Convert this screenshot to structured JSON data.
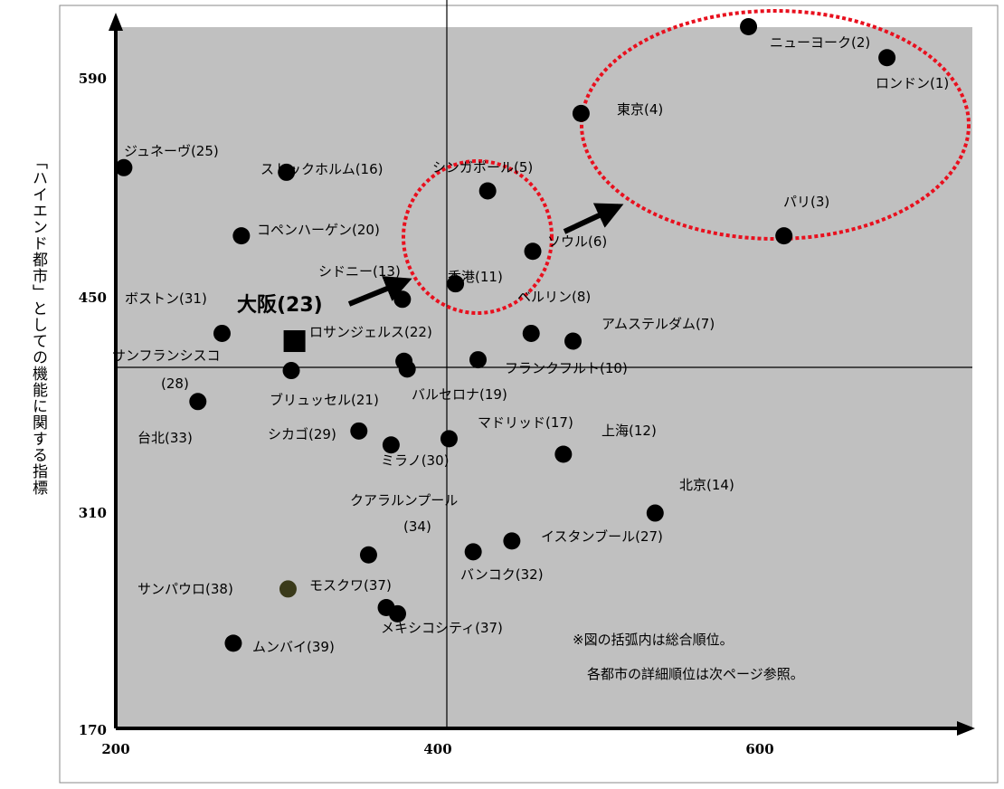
{
  "chart_data": {
    "type": "scatter",
    "ylabel": "「ハイエンド都市」としての機能に関する指標",
    "xlabel": "",
    "xlim": [
      200,
      735
    ],
    "ylim": [
      170,
      640
    ],
    "x_ticks": [
      "200",
      "400",
      "600"
    ],
    "y_ticks": [
      "170",
      "310",
      "450",
      "590"
    ],
    "reference_lines": {
      "x": 405,
      "y": 406
    },
    "points": [
      {
        "label": "ニューヨーク(2)",
        "x": 593,
        "y": 623
      },
      {
        "label": "ロンドン(1)",
        "x": 679,
        "y": 603
      },
      {
        "label": "東京(4)",
        "x": 489,
        "y": 567
      },
      {
        "label": "パリ(3)",
        "x": 615,
        "y": 488
      },
      {
        "label": "ジュネーヴ(25)",
        "x": 205,
        "y": 532
      },
      {
        "label": "ストックホルム(16)",
        "x": 306,
        "y": 529
      },
      {
        "label": "シンガポール(5)",
        "x": 431,
        "y": 517
      },
      {
        "label": "コペンハーゲン(20)",
        "x": 278,
        "y": 488
      },
      {
        "label": "ソウル(6)",
        "x": 459,
        "y": 478
      },
      {
        "label": "シドニー(13)",
        "x": 378,
        "y": 447
      },
      {
        "label": "香港(11)",
        "x": 411,
        "y": 457
      },
      {
        "label": "ボストン(31)",
        "x": 266,
        "y": 425
      },
      {
        "label": "ベルリン(8)",
        "x": 458,
        "y": 425
      },
      {
        "label": "アムステルダム(7)",
        "x": 484,
        "y": 420
      },
      {
        "label": "大阪(23)",
        "x": 311,
        "y": 420,
        "marker": "square"
      },
      {
        "label": "ロサンジェルス(22)",
        "x": 379,
        "y": 407
      },
      {
        "label": "フランクフルト(10)",
        "x": 425,
        "y": 408
      },
      {
        "label": "ブリュッセル(21)",
        "x": 309,
        "y": 401
      },
      {
        "label": "バルセロナ(19)",
        "x": 381,
        "y": 402
      },
      {
        "label": "サンフランシスコ(28)",
        "x": 251,
        "y": 381
      },
      {
        "label": "シカゴ(29)",
        "x": 351,
        "y": 362
      },
      {
        "label": "マドリッド(17)",
        "x": 407,
        "y": 357
      },
      {
        "label": "上海(12)",
        "x": 478,
        "y": 347
      },
      {
        "label": "ミラノ(30)",
        "x": 371,
        "y": 353
      },
      {
        "label": "北京(14)",
        "x": 535,
        "y": 309
      },
      {
        "label": "イスタンブール(27)",
        "x": 446,
        "y": 291
      },
      {
        "label": "バンコク(32)",
        "x": 422,
        "y": 284
      },
      {
        "label": "クアラルンプール(34)",
        "x": 357,
        "y": 282
      },
      {
        "label": "サンパウロ(38)",
        "x": 307,
        "y": 260,
        "color": "#3a3a1a"
      },
      {
        "label": "モスクワ(37)",
        "x": 368,
        "y": 248
      },
      {
        "label": "メキシコシティ(37)",
        "x": 375,
        "y": 244
      },
      {
        "label": "ムンバイ(39)",
        "x": 273,
        "y": 225
      }
    ],
    "osaka_label": "大阪(23)",
    "notes": [
      "※図の括弧内は総合順位。",
      "各都市の詳細順位は次ページ参照。"
    ],
    "colors": {
      "plot_bg": "#c0c0c0",
      "point": "#000000",
      "highlight_ellipse": "#e8101e"
    }
  },
  "labels": {
    "jp_0": "ジュネーヴ(25)",
    "jp_1": "ストックホルム(16)",
    "jp_2": "シンガポール(5)",
    "jp_3": "ニューヨーク(2)",
    "jp_4": "ロンドン(1)",
    "jp_5": "東京(4)",
    "jp_6": "パリ(3)",
    "jp_7": "コペンハーゲン(20)",
    "jp_8": "ソウル(6)",
    "jp_9": "シドニー(13)",
    "jp_10": "香港(11)",
    "jp_11": "ボストン(31)",
    "jp_12": "ベルリン(8)",
    "jp_13": "アムステルダム(7)",
    "jp_14": "ロサンジェルス(22)",
    "jp_15": "サンフランシスコ",
    "jp_16": "(28)",
    "jp_17": "フランクフルト(10)",
    "jp_18": "ブリュッセル(21)",
    "jp_19": "バルセロナ(19)",
    "jp_20": "台北(33)",
    "jp_21": "シカゴ(29)",
    "jp_22": "マドリッド(17)",
    "jp_23": "上海(12)",
    "jp_24": "ミラノ(30)",
    "jp_25": "北京(14)",
    "jp_26": "クアラルンプール",
    "jp_27": "(34)",
    "jp_28": "イスタンブール(27)",
    "jp_29": "バンコク(32)",
    "jp_30": "サンパウロ(38)",
    "jp_31": "モスクワ(37)",
    "jp_32": "メキシコシティ(37)",
    "jp_33": "ムンバイ(39)"
  }
}
